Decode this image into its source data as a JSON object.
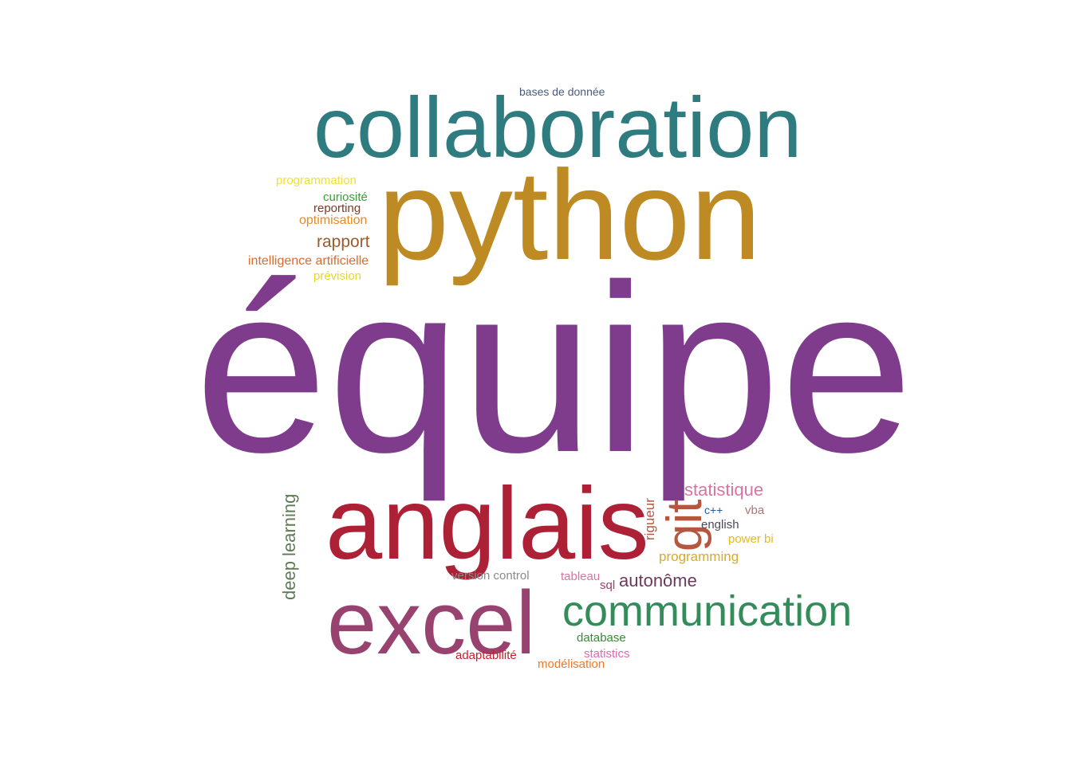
{
  "words": [
    {
      "text": "équipe",
      "color": "#7f3c8d"
    },
    {
      "text": "collaboration",
      "color": "#2e7c80"
    },
    {
      "text": "python",
      "color": "#bd8a23"
    },
    {
      "text": "anglais",
      "color": "#ac2136"
    },
    {
      "text": "excel",
      "color": "#98426f"
    },
    {
      "text": "communication",
      "color": "#338c5a"
    },
    {
      "text": "git",
      "color": "#b5563f"
    },
    {
      "text": "deep learning",
      "color": "#5e7b55"
    },
    {
      "text": "statistique",
      "color": "#d774a3"
    },
    {
      "text": "autonôme",
      "color": "#6b3a5c"
    },
    {
      "text": "rigueur",
      "color": "#b5563f"
    },
    {
      "text": "rapport",
      "color": "#9c5b2b"
    },
    {
      "text": "bases de donnée",
      "color": "#4a5a7d"
    },
    {
      "text": "programmation",
      "color": "#f0e12f"
    },
    {
      "text": "curiosité",
      "color": "#3a9a3a"
    },
    {
      "text": "reporting",
      "color": "#7a3b2a"
    },
    {
      "text": "optimisation",
      "color": "#e58a2a"
    },
    {
      "text": "intelligence artificielle",
      "color": "#e06a2a"
    },
    {
      "text": "prévision",
      "color": "#e8d628"
    },
    {
      "text": "c++",
      "color": "#2a5aa0"
    },
    {
      "text": "vba",
      "color": "#a87878"
    },
    {
      "text": "english",
      "color": "#4a4a5a"
    },
    {
      "text": "power bi",
      "color": "#e8b828"
    },
    {
      "text": "programming",
      "color": "#d4ac2a"
    },
    {
      "text": "version control",
      "color": "#8a8a8a"
    },
    {
      "text": "tableau",
      "color": "#d774a3"
    },
    {
      "text": "sql",
      "color": "#98426f"
    },
    {
      "text": "database",
      "color": "#3a8a3a"
    },
    {
      "text": "statistics",
      "color": "#e068b0"
    },
    {
      "text": "adaptabilité",
      "color": "#c81e2a"
    },
    {
      "text": "modélisation",
      "color": "#ef7a22"
    }
  ]
}
